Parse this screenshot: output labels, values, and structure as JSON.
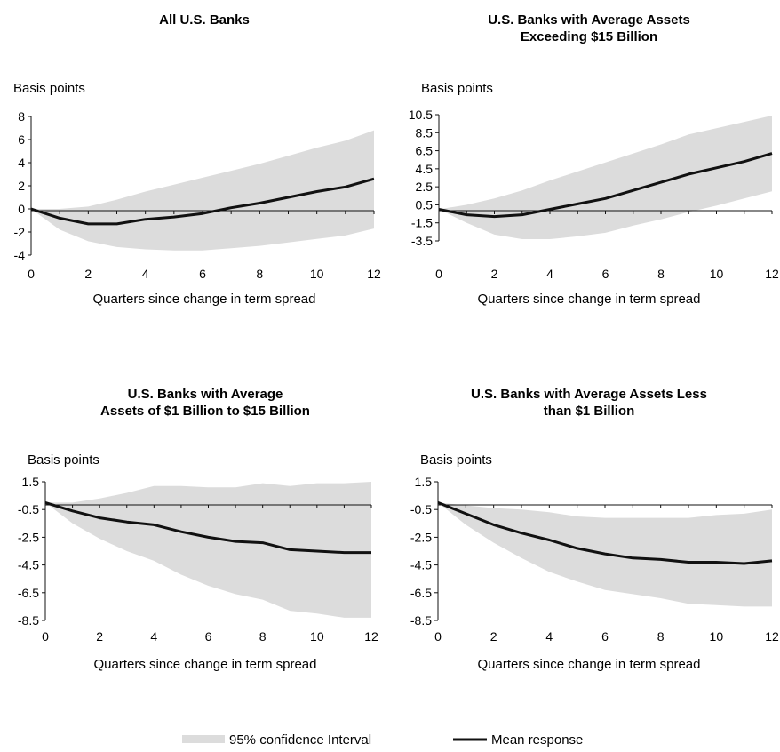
{
  "legend": {
    "band_label": "95% confidence Interval",
    "line_label": "Mean response",
    "band_color": "#dcdcdc",
    "line_color": "#111111"
  },
  "chart_data": [
    {
      "type": "line",
      "title_lines": [
        "All U.S. Banks"
      ],
      "ylabel": "Basis points",
      "xlabel": "Quarters since change in term spread",
      "x": [
        0,
        1,
        2,
        3,
        4,
        5,
        6,
        7,
        8,
        9,
        10,
        11,
        12
      ],
      "xlim": [
        0,
        12
      ],
      "xticks": [
        0,
        2,
        4,
        6,
        8,
        10,
        12
      ],
      "ylim": [
        -4,
        8
      ],
      "yticks": [
        -4,
        -2,
        0,
        2,
        4,
        6,
        8
      ],
      "ytick_labels": [
        "-4",
        "-2",
        "0",
        "2",
        "4",
        "6",
        "8"
      ],
      "series": [
        {
          "role": "mean",
          "values": [
            0,
            -0.8,
            -1.3,
            -1.3,
            -0.9,
            -0.7,
            -0.4,
            0.1,
            0.5,
            1.0,
            1.5,
            1.9,
            2.6
          ]
        },
        {
          "role": "upper",
          "values": [
            0,
            0.0,
            0.2,
            0.8,
            1.5,
            2.1,
            2.7,
            3.3,
            3.9,
            4.6,
            5.3,
            5.9,
            6.8
          ]
        },
        {
          "role": "lower",
          "values": [
            0,
            -1.8,
            -2.8,
            -3.3,
            -3.5,
            -3.6,
            -3.6,
            -3.4,
            -3.2,
            -2.9,
            -2.6,
            -2.3,
            -1.7
          ]
        }
      ]
    },
    {
      "type": "line",
      "title_lines": [
        "U.S. Banks with Average Assets",
        "Exceeding $15 Billion"
      ],
      "ylabel": "Basis points",
      "xlabel": "Quarters since change in term spread",
      "x": [
        0,
        1,
        2,
        3,
        4,
        5,
        6,
        7,
        8,
        9,
        10,
        11,
        12
      ],
      "xlim": [
        0,
        12
      ],
      "xticks": [
        0,
        2,
        4,
        6,
        8,
        10,
        12
      ],
      "ylim": [
        -3.5,
        10.5
      ],
      "yticks": [
        -3.5,
        -1.5,
        0.5,
        2.5,
        4.5,
        6.5,
        8.5,
        10.5
      ],
      "ytick_labels": [
        "-3.5",
        "-1.5",
        "0.5",
        "2.5",
        "4.5",
        "6.5",
        "8.5",
        "10.5"
      ],
      "series": [
        {
          "role": "mean",
          "values": [
            0,
            -0.6,
            -0.8,
            -0.6,
            0.0,
            0.6,
            1.2,
            2.1,
            3.0,
            3.9,
            4.6,
            5.3,
            6.2
          ]
        },
        {
          "role": "upper",
          "values": [
            0,
            0.5,
            1.2,
            2.1,
            3.2,
            4.2,
            5.2,
            6.2,
            7.2,
            8.3,
            9.0,
            9.7,
            10.4
          ]
        },
        {
          "role": "lower",
          "values": [
            0,
            -1.5,
            -2.8,
            -3.3,
            -3.3,
            -3.0,
            -2.6,
            -1.8,
            -1.1,
            -0.3,
            0.4,
            1.2,
            2.0
          ]
        }
      ]
    },
    {
      "type": "line",
      "title_lines": [
        "U.S. Banks with Average",
        "Assets of $1 Billion to $15 Billion"
      ],
      "ylabel": "Basis points",
      "xlabel": "Quarters since change in term spread",
      "x": [
        0,
        1,
        2,
        3,
        4,
        5,
        6,
        7,
        8,
        9,
        10,
        11,
        12
      ],
      "xlim": [
        0,
        12
      ],
      "xticks": [
        0,
        2,
        4,
        6,
        8,
        10,
        12
      ],
      "ylim": [
        -8.5,
        1.5
      ],
      "yticks": [
        -8.5,
        -6.5,
        -4.5,
        -2.5,
        -0.5,
        1.5
      ],
      "ytick_labels": [
        "-8.5",
        "-6.5",
        "-4.5",
        "-2.5",
        "-0.5",
        "1.5"
      ],
      "series": [
        {
          "role": "mean",
          "values": [
            0,
            -0.6,
            -1.1,
            -1.4,
            -1.6,
            -2.1,
            -2.5,
            -2.8,
            -2.9,
            -3.4,
            -3.5,
            -3.6,
            -3.6
          ]
        },
        {
          "role": "upper",
          "values": [
            0,
            0.0,
            0.3,
            0.7,
            1.2,
            1.2,
            1.1,
            1.1,
            1.4,
            1.2,
            1.4,
            1.4,
            1.5
          ]
        },
        {
          "role": "lower",
          "values": [
            0,
            -1.5,
            -2.6,
            -3.5,
            -4.2,
            -5.2,
            -6.0,
            -6.6,
            -7.0,
            -7.8,
            -8.0,
            -8.3,
            -8.3
          ]
        }
      ]
    },
    {
      "type": "line",
      "title_lines": [
        "U.S. Banks with Average Assets Less",
        "than $1 Billion"
      ],
      "ylabel": "Basis points",
      "xlabel": "Quarters since change in term spread",
      "x": [
        0,
        1,
        2,
        3,
        4,
        5,
        6,
        7,
        8,
        9,
        10,
        11,
        12
      ],
      "xlim": [
        0,
        12
      ],
      "xticks": [
        0,
        2,
        4,
        6,
        8,
        10,
        12
      ],
      "ylim": [
        -8.5,
        1.5
      ],
      "yticks": [
        -8.5,
        -6.5,
        -4.5,
        -2.5,
        -0.5,
        1.5
      ],
      "ytick_labels": [
        "-8.5",
        "-6.5",
        "-4.5",
        "-2.5",
        "-0.5",
        "1.5"
      ],
      "series": [
        {
          "role": "mean",
          "values": [
            0,
            -0.8,
            -1.6,
            -2.2,
            -2.7,
            -3.3,
            -3.7,
            -4.0,
            -4.1,
            -4.3,
            -4.3,
            -4.4,
            -4.2
          ]
        },
        {
          "role": "upper",
          "values": [
            0,
            -0.2,
            -0.4,
            -0.5,
            -0.7,
            -1.0,
            -1.1,
            -1.1,
            -1.1,
            -1.1,
            -0.9,
            -0.8,
            -0.5
          ]
        },
        {
          "role": "lower",
          "values": [
            0,
            -1.6,
            -2.9,
            -4.0,
            -5.0,
            -5.7,
            -6.3,
            -6.6,
            -6.9,
            -7.3,
            -7.4,
            -7.5,
            -7.5
          ]
        }
      ]
    }
  ]
}
